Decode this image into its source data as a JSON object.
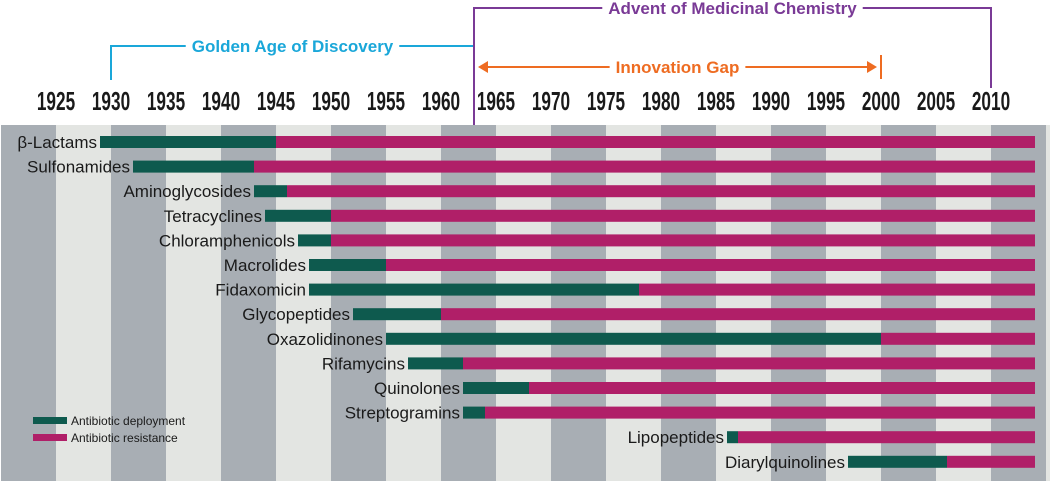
{
  "colors": {
    "deployment": "#0e5a4e",
    "resistance": "#b01f68",
    "stripe_dark": "#a8aeb4",
    "stripe_light": "#e3e5e2",
    "golden_age": "#1aa7d9",
    "innovation_gap": "#ee6c22",
    "medicinal_chemistry": "#7a3a96"
  },
  "chart_data": {
    "type": "bar",
    "subtype": "timeline",
    "x_ticks": [
      1925,
      1930,
      1935,
      1940,
      1945,
      1950,
      1955,
      1960,
      1965,
      1970,
      1975,
      1980,
      1985,
      1990,
      1995,
      2000,
      2005,
      2010
    ],
    "xlim": [
      1921,
      2014
    ],
    "grid": "alternating vertical bands, 5-year",
    "legend": {
      "position": "bottom-left",
      "entries": [
        "Antibiotic deployment",
        "Antibiotic resistance"
      ]
    },
    "series": [
      {
        "name": "Antibiotic deployment",
        "color_key": "deployment"
      },
      {
        "name": "Antibiotic resistance",
        "color_key": "resistance"
      }
    ],
    "rows": [
      {
        "label": "β-Lactams",
        "deployment_start": 1929,
        "resistance_start": 1945,
        "end": 2014
      },
      {
        "label": "Sulfonamides",
        "deployment_start": 1932,
        "resistance_start": 1943,
        "end": 2014
      },
      {
        "label": "Aminoglycosides",
        "deployment_start": 1943,
        "resistance_start": 1946,
        "end": 2014
      },
      {
        "label": "Tetracyclines",
        "deployment_start": 1944,
        "resistance_start": 1950,
        "end": 2014
      },
      {
        "label": "Chloramphenicols",
        "deployment_start": 1947,
        "resistance_start": 1950,
        "end": 2014
      },
      {
        "label": "Macrolides",
        "deployment_start": 1948,
        "resistance_start": 1955,
        "end": 2014
      },
      {
        "label": "Fidaxomicin",
        "deployment_start": 1948,
        "resistance_start": 1978,
        "end": 2014
      },
      {
        "label": "Glycopeptides",
        "deployment_start": 1952,
        "resistance_start": 1960,
        "end": 2014
      },
      {
        "label": "Oxazolidinones",
        "deployment_start": 1955,
        "resistance_start": 2000,
        "end": 2014
      },
      {
        "label": "Rifamycins",
        "deployment_start": 1957,
        "resistance_start": 1962,
        "end": 2014
      },
      {
        "label": "Quinolones",
        "deployment_start": 1962,
        "resistance_start": 1968,
        "end": 2014
      },
      {
        "label": "Streptogramins",
        "deployment_start": 1962,
        "resistance_start": 1964,
        "end": 2014
      },
      {
        "label": "Lipopeptides",
        "deployment_start": 1986,
        "resistance_start": 1987,
        "end": 2014
      },
      {
        "label": "Diarylquinolines",
        "deployment_start": 1997,
        "resistance_start": 2006,
        "end": 2014
      }
    ],
    "periods": [
      {
        "label": "Golden Age of Discovery",
        "start": 1930,
        "end": 1963,
        "style": "bracket",
        "color_key": "golden_age"
      },
      {
        "label": "Innovation Gap",
        "start": 1963,
        "end": 2000,
        "style": "arrows",
        "color_key": "innovation_gap"
      },
      {
        "label": "Advent of Medicinal Chemistry",
        "start": 1963,
        "end": 2010,
        "style": "bracket",
        "color_key": "medicinal_chemistry"
      }
    ]
  }
}
